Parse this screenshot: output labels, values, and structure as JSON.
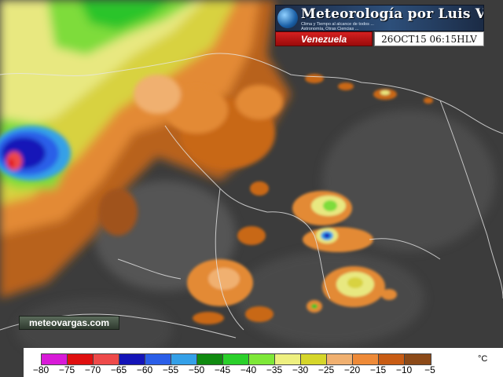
{
  "header": {
    "title": "Meteorología por Luis Vargas",
    "subtitle_line1": "Clima y Tiempo al alcance de todos ...",
    "subtitle_line2": "Astronomía, Otras Ciencias ..."
  },
  "region_label": "Venezuela",
  "timestamp": "26OCT15 06:15HLV",
  "site_badge": "meteovargas.com",
  "legend": {
    "unit": "°C",
    "ticks": [
      "−80",
      "−75",
      "−70",
      "−65",
      "−60",
      "−55",
      "−50",
      "−45",
      "−40",
      "−35",
      "−30",
      "−25",
      "−20",
      "−15",
      "−10",
      "−5"
    ],
    "colors": [
      "#d81ad8",
      "#e01010",
      "#ee4a4a",
      "#1414b8",
      "#2a5ee8",
      "#34a0e8",
      "#108a10",
      "#2ad02a",
      "#7ee838",
      "#eef080",
      "#d6d62a",
      "#f0b070",
      "#ee8a38",
      "#c85c14",
      "#8c4a18"
    ]
  }
}
